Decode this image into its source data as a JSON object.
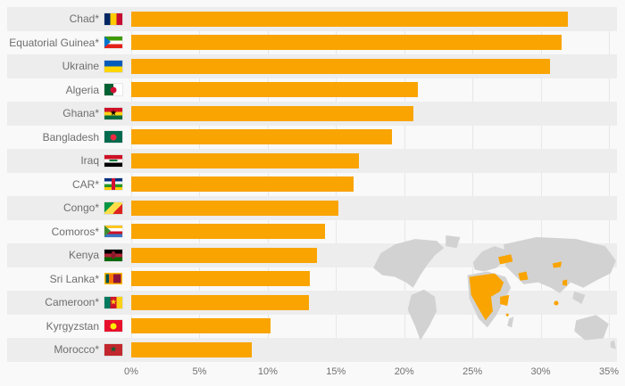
{
  "chart_data": {
    "type": "bar",
    "orientation": "horizontal",
    "categories": [
      "Chad*",
      "Equatorial Guinea*",
      "Ukraine",
      "Algeria",
      "Ghana*",
      "Bangladesh",
      "Iraq",
      "CAR*",
      "Congo*",
      "Comoros*",
      "Kenya",
      "Sri Lanka*",
      "Cameroon*",
      "Kyrgyzstan",
      "Morocco*"
    ],
    "values": [
      32.0,
      31.5,
      30.7,
      21.0,
      20.7,
      19.1,
      16.7,
      16.3,
      15.2,
      14.2,
      13.6,
      13.1,
      13.0,
      10.2,
      8.8
    ],
    "value_unit": "%",
    "xlabel": "",
    "ylabel": "",
    "xlim": [
      0,
      35
    ],
    "x_ticks": [
      "0%",
      "5%",
      "10%",
      "15%",
      "20%",
      "25%",
      "30%",
      "35%"
    ],
    "grid": true,
    "legend": false,
    "bar_color": "#F9A400"
  },
  "flags": [
    {
      "name": "chad-flag",
      "stripes": "v",
      "colors": [
        "#002664",
        "#FECB00",
        "#C60C30"
      ]
    },
    {
      "name": "equatorial-guinea-flag",
      "stripes": "h",
      "colors": [
        "#3E9A00",
        "#FFFFFF",
        "#E32118"
      ],
      "emblems": [
        {
          "type": "triangle",
          "color": "#0073CE"
        }
      ]
    },
    {
      "name": "ukraine-flag",
      "stripes": "h",
      "colors": [
        "#005BBB",
        "#FFD500"
      ]
    },
    {
      "name": "algeria-flag",
      "stripes": "v",
      "colors": [
        "#006233",
        "#FFFFFF"
      ],
      "emblems": [
        {
          "type": "circle",
          "color": "#D21034"
        }
      ]
    },
    {
      "name": "ghana-flag",
      "stripes": "h",
      "colors": [
        "#CE1126",
        "#FCD116",
        "#006B3F"
      ],
      "emblems": [
        {
          "type": "star",
          "color": "#000000"
        }
      ]
    },
    {
      "name": "bangladesh-flag",
      "stripes": "h",
      "colors": [
        "#006A4E"
      ],
      "emblems": [
        {
          "type": "circle",
          "color": "#F42A41"
        }
      ]
    },
    {
      "name": "iraq-flag",
      "stripes": "h",
      "colors": [
        "#CE1126",
        "#FFFFFF",
        "#000000"
      ],
      "emblems": [
        {
          "type": "dash",
          "color": "#007A3D"
        }
      ]
    },
    {
      "name": "central-african-republic-flag",
      "stripes": "h",
      "colors": [
        "#003082",
        "#FFFFFF",
        "#289728",
        "#FFCE00"
      ],
      "emblems": [
        {
          "type": "vbar",
          "color": "#D21034"
        }
      ]
    },
    {
      "name": "congo-flag",
      "stripes": "d",
      "colors": [
        "#009543",
        "#FBDE4A",
        "#DC241F"
      ]
    },
    {
      "name": "comoros-flag",
      "stripes": "h",
      "colors": [
        "#FFC61E",
        "#FFFFFF",
        "#CE1126",
        "#3A75C4"
      ],
      "emblems": [
        {
          "type": "triangle",
          "color": "#3D8E33"
        }
      ]
    },
    {
      "name": "kenya-flag",
      "stripes": "h",
      "colors": [
        "#000000",
        "#B22234",
        "#006600"
      ],
      "emblems": [
        {
          "type": "ellipse",
          "color": "#8B1A2A"
        }
      ]
    },
    {
      "name": "sri-lanka-flag",
      "stripes": "v",
      "colors": [
        "#00534E",
        "#FF7300",
        "#8D153A",
        "#8D153A"
      ],
      "border": "#FFB700"
    },
    {
      "name": "cameroon-flag",
      "stripes": "v",
      "colors": [
        "#007A5E",
        "#CE1126",
        "#FCD116"
      ],
      "emblems": [
        {
          "type": "star",
          "color": "#FCD116"
        }
      ]
    },
    {
      "name": "kyrgyzstan-flag",
      "stripes": "h",
      "colors": [
        "#E8112D"
      ],
      "emblems": [
        {
          "type": "circle",
          "color": "#FFEF00"
        }
      ]
    },
    {
      "name": "morocco-flag",
      "stripes": "h",
      "colors": [
        "#C1272D"
      ],
      "emblems": [
        {
          "type": "star",
          "color": "#006233"
        }
      ]
    }
  ],
  "colors": {
    "bar": "#F9A400",
    "stripe": "#ededed",
    "background": "#f9f9f9",
    "label_text": "#6e6e6e",
    "axis_text": "#717171",
    "gridline": "rgba(0,0,0,0.07)",
    "map_land": "#d2d2d2",
    "map_highlight": "#F9A400"
  }
}
